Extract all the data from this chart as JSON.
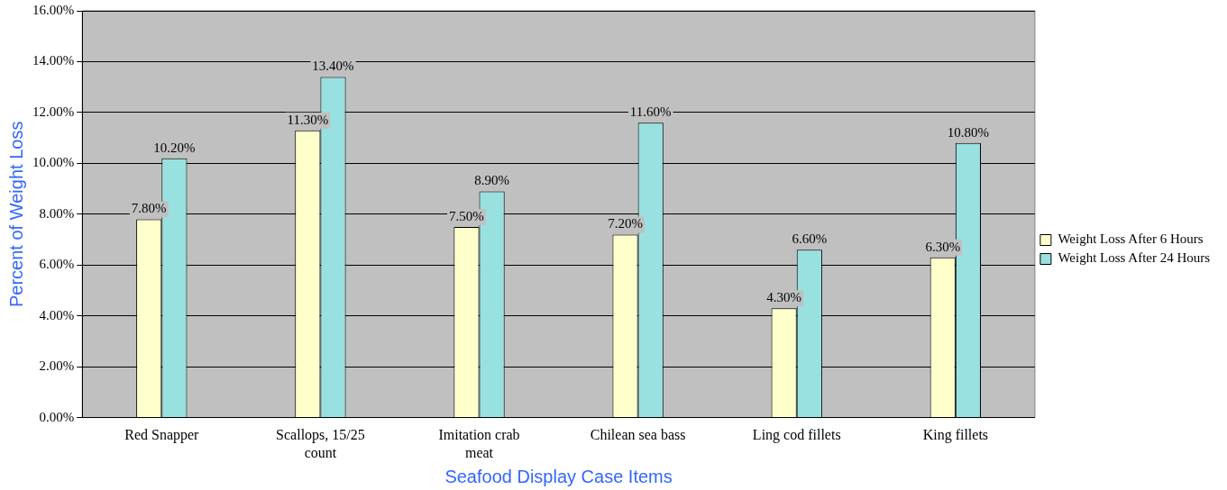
{
  "chart_data": {
    "type": "bar",
    "xlabel": "Seafood Display Case Items",
    "ylabel": "Percent of Weight Loss",
    "categories": [
      "Red Snapper",
      "Scallops, 15/25 count",
      "Imitation crab meat",
      "Chilean sea bass",
      "Ling cod fillets",
      "King fillets"
    ],
    "series": [
      {
        "name": "Weight Loss After 6 Hours",
        "color": "#ffffcc",
        "values": [
          7.8,
          11.3,
          7.5,
          7.2,
          4.3,
          6.3
        ],
        "value_labels": [
          "7.80%",
          "11.30%",
          "7.50%",
          "7.20%",
          "4.30%",
          "6.30%"
        ]
      },
      {
        "name": "Weight Loss After 24 Hours",
        "color": "#99e0e0",
        "values": [
          10.2,
          13.4,
          8.9,
          11.6,
          6.6,
          10.8
        ],
        "value_labels": [
          "10.20%",
          "13.40%",
          "8.90%",
          "11.60%",
          "6.60%",
          "10.80%"
        ]
      }
    ],
    "ylim": [
      0,
      16
    ],
    "yticks": [
      {
        "value": 0,
        "label": "0.00%"
      },
      {
        "value": 2,
        "label": "2.00%"
      },
      {
        "value": 4,
        "label": "4.00%"
      },
      {
        "value": 6,
        "label": "6.00%"
      },
      {
        "value": 8,
        "label": "8.00%"
      },
      {
        "value": 10,
        "label": "10.00%"
      },
      {
        "value": 12,
        "label": "12.00%"
      },
      {
        "value": 14,
        "label": "14.00%"
      },
      {
        "value": 16,
        "label": "16.00%"
      }
    ],
    "grid": "y",
    "legend": "right"
  }
}
